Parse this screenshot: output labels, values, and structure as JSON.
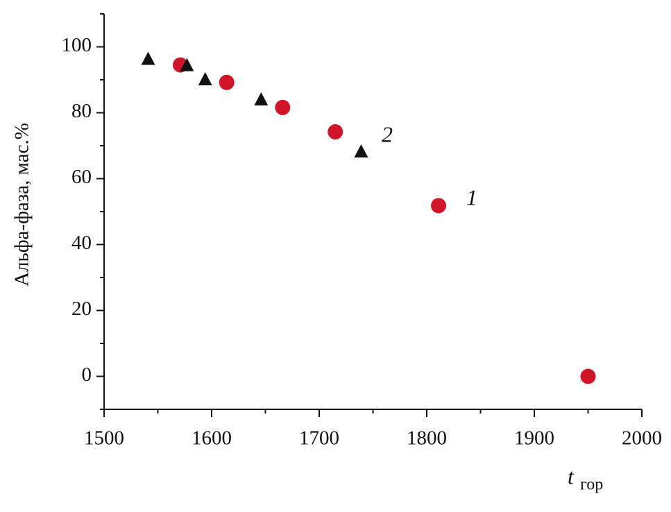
{
  "chart_data": {
    "type": "scatter",
    "x_label": {
      "main": "t",
      "sub": "гор"
    },
    "y_label": "Альфа-фаза, мас.%",
    "xlim": [
      1500,
      2000
    ],
    "xticks": [
      1500,
      1600,
      1700,
      1800,
      1900,
      2000
    ],
    "xminorticks": [
      1550,
      1650,
      1750,
      1850,
      1950
    ],
    "ylim": [
      -10,
      110
    ],
    "yticks": [
      0,
      20,
      40,
      60,
      80,
      100
    ],
    "yminorticks": [
      -10,
      10,
      30,
      50,
      70,
      90,
      110
    ],
    "series": [
      {
        "name": "1",
        "color": "#d0152a",
        "marker": "circle",
        "x": [
          1571,
          1614,
          1666,
          1715,
          1811,
          1950
        ],
        "values": [
          94.5,
          89.2,
          81.6,
          74.2,
          51.8,
          0
        ]
      },
      {
        "name": "2",
        "color": "#111111",
        "marker": "triangle",
        "x": [
          1541,
          1577,
          1594,
          1646,
          1739
        ],
        "values": [
          96.2,
          94.3,
          90,
          83.9,
          68.1
        ]
      }
    ]
  }
}
